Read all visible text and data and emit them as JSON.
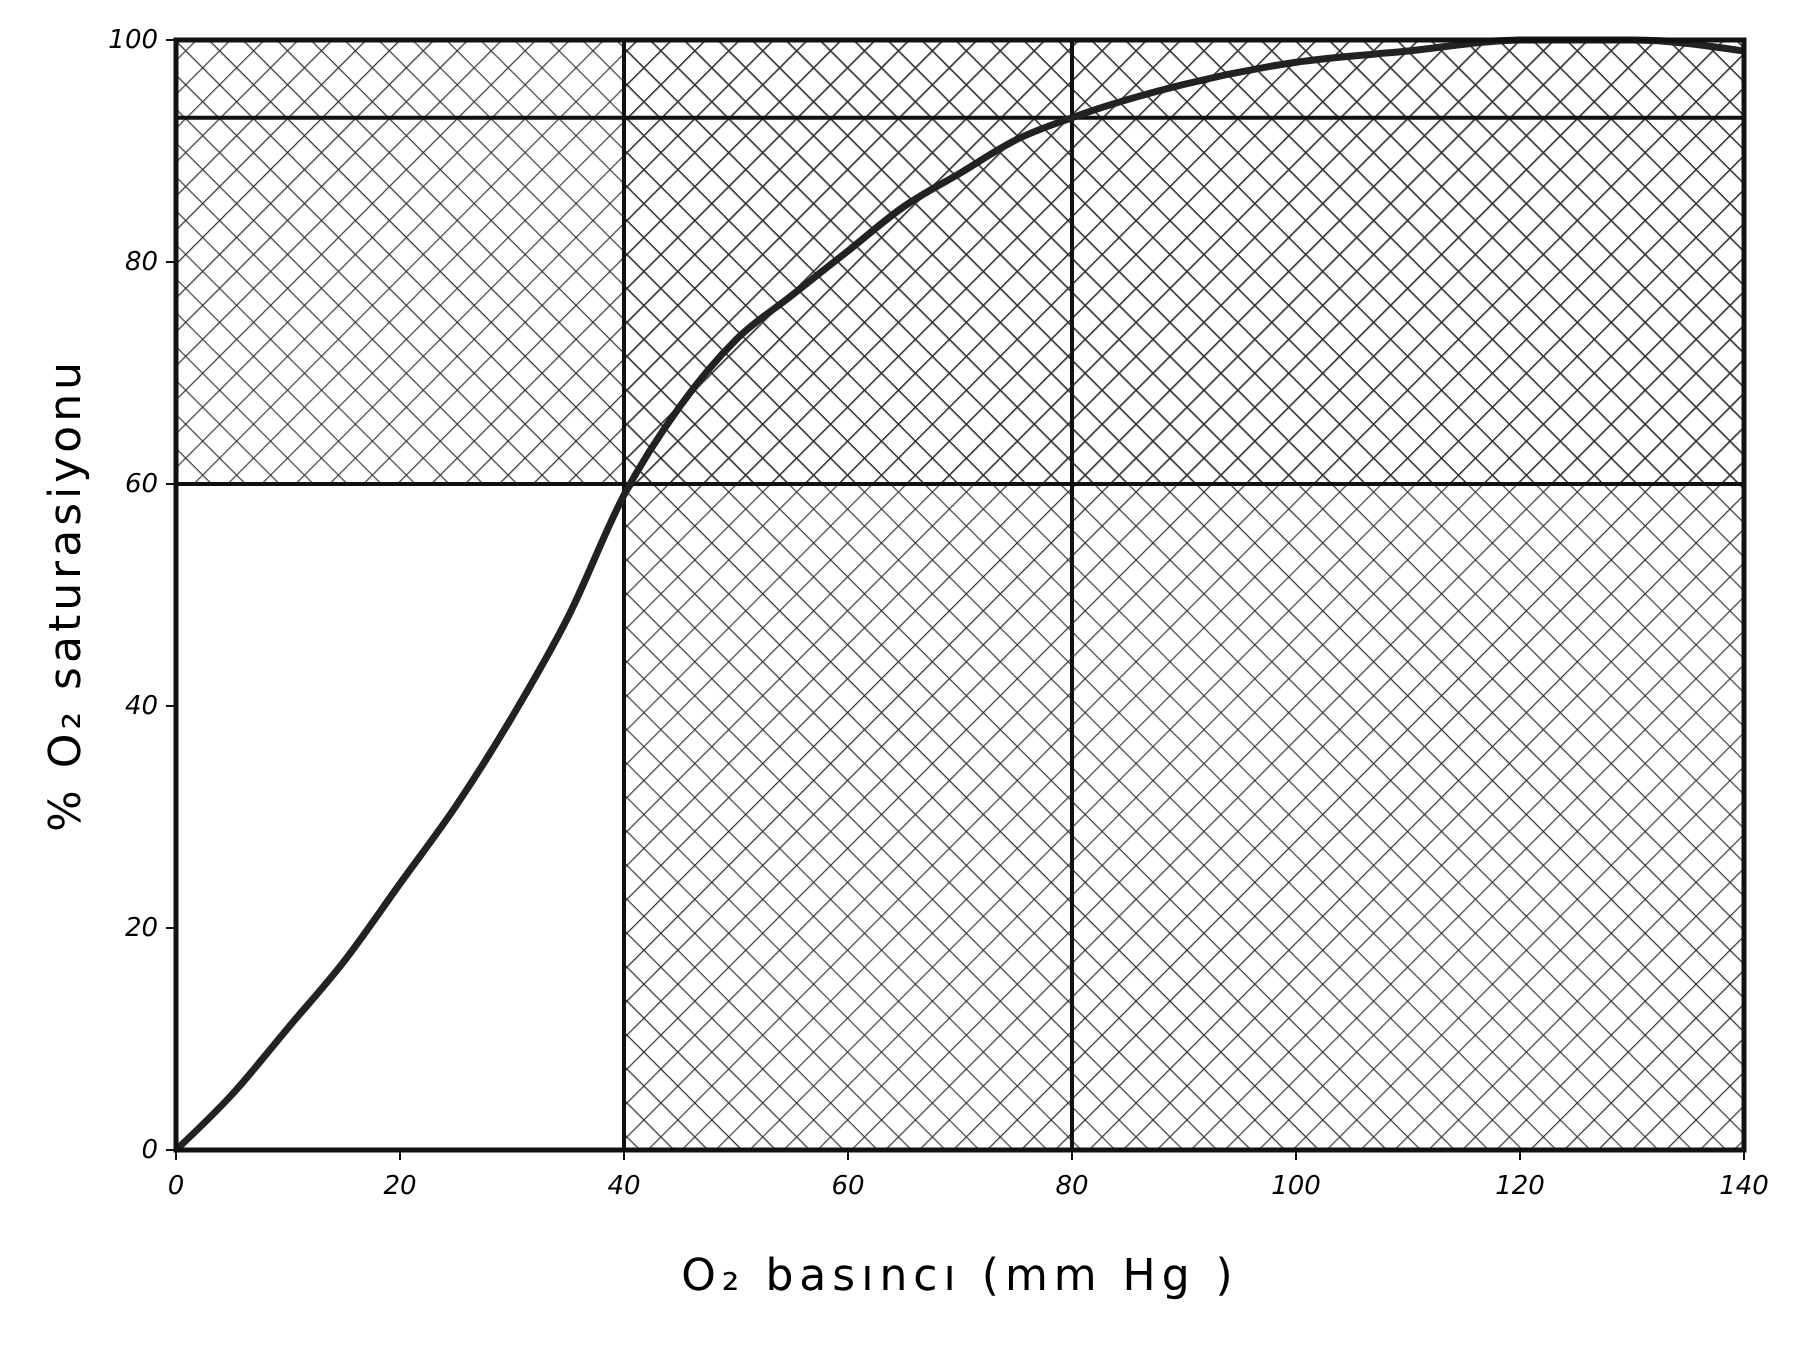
{
  "chart_data": {
    "type": "line",
    "xlabel": "O₂ basıncı  (mm Hg )",
    "ylabel": "% O₂ saturasiyonu",
    "x": [
      0,
      5,
      10,
      15,
      20,
      25,
      30,
      35,
      40,
      45,
      50,
      55,
      60,
      65,
      70,
      75,
      80,
      90,
      100,
      110,
      120,
      130,
      140
    ],
    "series": [
      {
        "color": "#222222",
        "values": [
          0,
          5,
          11,
          17,
          24,
          31,
          39,
          48,
          59,
          67,
          73,
          77,
          81,
          85,
          88,
          91,
          93,
          96,
          98,
          99,
          100,
          100,
          99
        ]
      }
    ],
    "xlim": [
      0,
      140
    ],
    "ylim": [
      0,
      100
    ],
    "xticks": [
      0,
      20,
      40,
      60,
      80,
      100,
      120,
      140
    ],
    "yticks": [
      0,
      20,
      40,
      60,
      80,
      100
    ],
    "bands": [
      {
        "axis": "y",
        "from": 60,
        "to": 100,
        "color": "#333333"
      },
      {
        "axis": "x",
        "from": 40,
        "to": 140,
        "color": "#333333"
      }
    ],
    "ref_lines": [
      {
        "axis": "x",
        "value": 40
      },
      {
        "axis": "x",
        "value": 80
      },
      {
        "axis": "y",
        "value": 60
      },
      {
        "axis": "y",
        "value": 93
      }
    ],
    "marker": "none",
    "line_style": "solid"
  }
}
